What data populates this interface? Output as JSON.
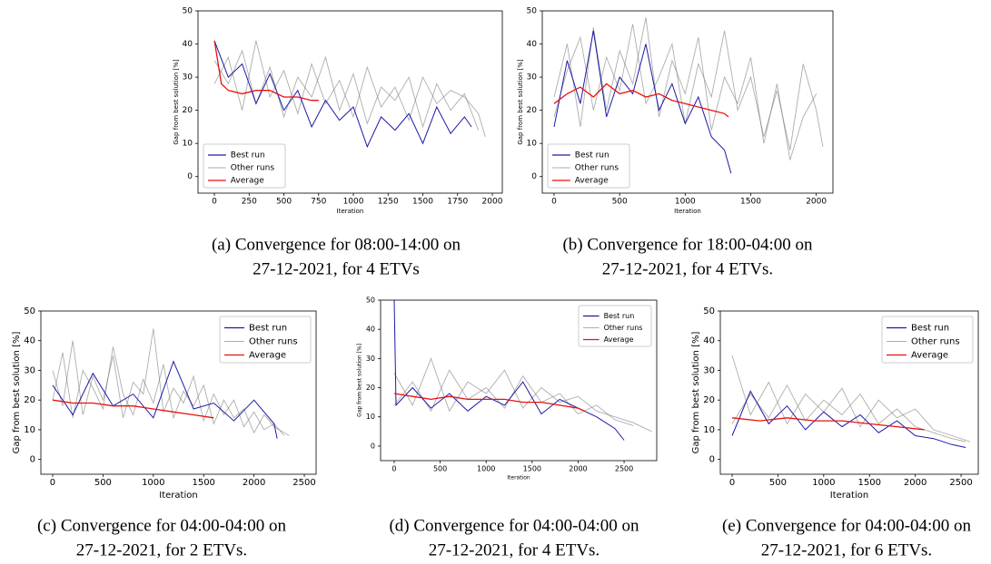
{
  "chart_data": [
    {
      "type": "line",
      "xlabel": "Iteration",
      "ylabel": "Gap from best solution [%]",
      "legend": "lower left",
      "caption": [
        "(a) Convergence for 08:00-14:00 on",
        "27-12-2021, for 4 ETVs"
      ],
      "xlim": [
        -118,
        2072
      ],
      "ylim": [
        -5,
        50
      ],
      "xticks": [
        0,
        250,
        500,
        750,
        1000,
        1250,
        1500,
        1750,
        2000
      ],
      "yticks": [
        0,
        10,
        20,
        30,
        40,
        50
      ],
      "series": [
        {
          "name": "Best run",
          "color": "#1a1aa8",
          "x": [
            0,
            100,
            200,
            300,
            400,
            500,
            600,
            700,
            800,
            900,
            1000,
            1100,
            1200,
            1300,
            1400,
            1500,
            1600,
            1700,
            1800,
            1850
          ],
          "values": [
            41,
            30,
            34,
            22,
            31,
            20,
            26,
            15,
            23,
            17,
            21,
            9,
            18,
            14,
            19,
            10,
            21,
            13,
            18,
            15
          ]
        },
        {
          "name": "Other runs",
          "color": "#777777",
          "runs": [
            {
              "x": [
                0,
                100,
                200,
                300,
                400,
                500,
                600,
                700,
                800,
                900,
                1000,
                1100,
                1200,
                1300,
                1400,
                1500,
                1600,
                1700,
                1800,
                1900
              ],
              "values": [
                35,
                28,
                38,
                22,
                33,
                18,
                30,
                24,
                36,
                20,
                31,
                16,
                27,
                23,
                30,
                15,
                28,
                20,
                25,
                14
              ]
            },
            {
              "x": [
                0,
                100,
                200,
                300,
                400,
                500,
                600,
                700,
                800,
                900,
                1000,
                1100,
                1200,
                1300,
                1400,
                1500,
                1600,
                1700,
                1800,
                1900,
                1950
              ],
              "values": [
                28,
                36,
                20,
                41,
                24,
                32,
                19,
                34,
                22,
                29,
                18,
                33,
                21,
                27,
                17,
                30,
                22,
                26,
                24,
                19,
                12
              ]
            }
          ]
        },
        {
          "name": "Average",
          "color": "#e8120c",
          "x": [
            0,
            50,
            100,
            200,
            300,
            400,
            500,
            600,
            700,
            750
          ],
          "values": [
            41,
            28,
            26,
            25,
            26,
            26,
            24,
            24,
            23,
            23
          ]
        }
      ]
    },
    {
      "type": "line",
      "xlabel": "Iteration",
      "ylabel": "Gap from best solution [%]",
      "legend": "lower left",
      "caption": [
        "(b) Convergence for 18:00-04:00 on",
        "27-12-2021, for 4 ETVs."
      ],
      "xlim": [
        -90,
        2127
      ],
      "ylim": [
        -5,
        50
      ],
      "xticks": [
        0,
        500,
        1000,
        1500,
        2000
      ],
      "yticks": [
        0,
        10,
        20,
        30,
        40,
        50
      ],
      "series": [
        {
          "name": "Best run",
          "color": "#1a1aa8",
          "x": [
            0,
            100,
            200,
            300,
            400,
            500,
            600,
            700,
            800,
            900,
            1000,
            1100,
            1200,
            1300,
            1350
          ],
          "values": [
            15,
            35,
            22,
            44,
            18,
            30,
            25,
            40,
            20,
            28,
            16,
            24,
            12,
            8,
            1
          ]
        },
        {
          "name": "Other runs",
          "color": "#777777",
          "runs": [
            {
              "x": [
                0,
                100,
                200,
                300,
                400,
                500,
                600,
                700,
                800,
                900,
                1000,
                1100,
                1200,
                1300,
                1400,
                1500,
                1600,
                1700,
                1800,
                1900,
                2000
              ],
              "values": [
                24,
                40,
                15,
                45,
                20,
                38,
                28,
                48,
                18,
                35,
                25,
                42,
                14,
                30,
                22,
                36,
                10,
                28,
                5,
                18,
                25
              ]
            },
            {
              "x": [
                0,
                100,
                200,
                300,
                400,
                500,
                600,
                700,
                800,
                900,
                1000,
                1100,
                1200,
                1300,
                1400,
                1500,
                1600,
                1700,
                1800,
                1900,
                2000,
                2050
              ],
              "values": [
                18,
                32,
                42,
                20,
                36,
                26,
                46,
                22,
                30,
                40,
                16,
                34,
                24,
                44,
                20,
                30,
                12,
                26,
                8,
                34,
                20,
                9
              ]
            }
          ]
        },
        {
          "name": "Average",
          "color": "#e8120c",
          "x": [
            0,
            100,
            200,
            300,
            400,
            500,
            600,
            700,
            800,
            900,
            1000,
            1100,
            1200,
            1300,
            1330
          ],
          "values": [
            22,
            25,
            27,
            24,
            28,
            25,
            26,
            24,
            25,
            23,
            22,
            21,
            20,
            19,
            18
          ]
        }
      ]
    },
    {
      "type": "line",
      "xlabel": "Iteration",
      "ylabel": "Gap from best solution [%]",
      "legend": "upper right",
      "caption": [
        "(c) Convergence for 04:00-04:00 on",
        "27-12-2021, for 2 ETVs."
      ],
      "xlim": [
        -117,
        2617
      ],
      "ylim": [
        -5,
        50
      ],
      "xticks": [
        0,
        500,
        1000,
        1500,
        2000,
        2500
      ],
      "yticks": [
        0,
        10,
        20,
        30,
        40,
        50
      ],
      "series": [
        {
          "name": "Best run",
          "color": "#1a1aa8",
          "x": [
            0,
            200,
            400,
            600,
            800,
            1000,
            1200,
            1400,
            1600,
            1800,
            2000,
            2200,
            2230
          ],
          "values": [
            25,
            15,
            29,
            18,
            22,
            14,
            33,
            17,
            19,
            13,
            20,
            12,
            7
          ]
        },
        {
          "name": "Other runs",
          "color": "#777777",
          "runs": [
            {
              "x": [
                0,
                100,
                200,
                300,
                400,
                500,
                600,
                700,
                800,
                900,
                1000,
                1100,
                1200,
                1300,
                1400,
                1500,
                1600,
                1700,
                1800,
                1900,
                2000,
                2100,
                2200,
                2300
              ],
              "values": [
                30,
                18,
                40,
                15,
                28,
                20,
                35,
                14,
                26,
                22,
                44,
                16,
                24,
                19,
                28,
                13,
                22,
                15,
                20,
                11,
                16,
                10,
                12,
                8
              ]
            },
            {
              "x": [
                0,
                100,
                200,
                300,
                400,
                500,
                600,
                700,
                800,
                900,
                1000,
                1100,
                1200,
                1300,
                1400,
                1500,
                1600,
                1700,
                1800,
                1900,
                2000,
                2100,
                2200,
                2300,
                2350
              ],
              "values": [
                20,
                36,
                14,
                30,
                24,
                17,
                38,
                22,
                15,
                27,
                19,
                32,
                14,
                23,
                18,
                25,
                12,
                20,
                14,
                17,
                9,
                15,
                11,
                9,
                8
              ]
            }
          ]
        },
        {
          "name": "Average",
          "color": "#e8120c",
          "x": [
            0,
            200,
            400,
            600,
            800,
            1000,
            1200,
            1400,
            1600
          ],
          "values": [
            20,
            19,
            19,
            18,
            18,
            17,
            16,
            15,
            14
          ]
        }
      ]
    },
    {
      "type": "line",
      "xlabel": "Iteration",
      "ylabel": "Gap from best solution [%]",
      "legend": "upper right",
      "caption": [
        "(d) Convergence for 04:00-04:00 on",
        "27-12-2021, for 4 ETVs."
      ],
      "xlim": [
        -148,
        2855
      ],
      "ylim": [
        -5,
        50
      ],
      "xticks": [
        0,
        500,
        1000,
        1500,
        2000,
        2500
      ],
      "yticks": [
        0,
        10,
        20,
        30,
        40,
        50
      ],
      "series": [
        {
          "name": "Best run",
          "color": "#1a1aa8",
          "x": [
            0,
            20,
            200,
            400,
            600,
            800,
            1000,
            1200,
            1400,
            1600,
            1800,
            2000,
            2200,
            2400,
            2500
          ],
          "values": [
            50,
            14,
            20,
            13,
            18,
            12,
            17,
            14,
            22,
            11,
            16,
            13,
            10,
            6,
            2
          ]
        },
        {
          "name": "Other runs",
          "color": "#777777",
          "runs": [
            {
              "x": [
                0,
                200,
                400,
                600,
                800,
                1000,
                1200,
                1400,
                1600,
                1800,
                2000,
                2200,
                2400,
                2600,
                2800
              ],
              "values": [
                25,
                14,
                30,
                12,
                22,
                18,
                26,
                13,
                20,
                15,
                17,
                12,
                10,
                8,
                5
              ]
            },
            {
              "x": [
                0,
                200,
                400,
                600,
                800,
                1000,
                1200,
                1400,
                1600,
                1800,
                2000,
                2200,
                2400,
                2600
              ],
              "values": [
                14,
                22,
                12,
                26,
                16,
                20,
                13,
                24,
                15,
                18,
                11,
                14,
                9,
                7
              ]
            }
          ]
        },
        {
          "name": "Average",
          "color": "#e8120c",
          "x": [
            0,
            200,
            400,
            600,
            800,
            1000,
            1200,
            1400,
            1600,
            1800,
            2000,
            2070
          ],
          "values": [
            18,
            17,
            16,
            17,
            16,
            16,
            16,
            15,
            15,
            14,
            13,
            12
          ]
        }
      ]
    },
    {
      "type": "line",
      "xlabel": "Iteration",
      "ylabel": "Gap from best solution [%]",
      "legend": "upper right",
      "caption": [
        "(e) Convergence for 04:00-04:00 on",
        "27-12-2021, for 6 ETVs."
      ],
      "xlim": [
        -129,
        2688
      ],
      "ylim": [
        -5,
        50
      ],
      "xticks": [
        0,
        500,
        1000,
        1500,
        2000,
        2500
      ],
      "yticks": [
        0,
        10,
        20,
        30,
        40,
        50
      ],
      "series": [
        {
          "name": "Best run",
          "color": "#1a1aa8",
          "x": [
            0,
            200,
            400,
            600,
            800,
            1000,
            1200,
            1400,
            1600,
            1800,
            2000,
            2200,
            2400,
            2550
          ],
          "values": [
            8,
            23,
            12,
            18,
            10,
            16,
            11,
            15,
            9,
            13,
            8,
            7,
            5,
            4
          ]
        },
        {
          "name": "Other runs",
          "color": "#777777",
          "runs": [
            {
              "x": [
                0,
                200,
                400,
                600,
                800,
                1000,
                1200,
                1400,
                1600,
                1800,
                2000,
                2200,
                2400,
                2600
              ],
              "values": [
                35,
                15,
                26,
                12,
                22,
                16,
                24,
                11,
                20,
                14,
                17,
                10,
                8,
                6
              ]
            },
            {
              "x": [
                0,
                200,
                400,
                600,
                800,
                1000,
                1200,
                1400,
                1600,
                1800,
                2000,
                2200,
                2400,
                2550
              ],
              "values": [
                12,
                22,
                14,
                25,
                13,
                20,
                15,
                22,
                12,
                17,
                11,
                9,
                7,
                6
              ]
            }
          ]
        },
        {
          "name": "Average",
          "color": "#e8120c",
          "x": [
            0,
            300,
            600,
            900,
            1200,
            1500,
            1800,
            2100
          ],
          "values": [
            14,
            13,
            14,
            13,
            13,
            12,
            11,
            10
          ]
        }
      ]
    }
  ]
}
